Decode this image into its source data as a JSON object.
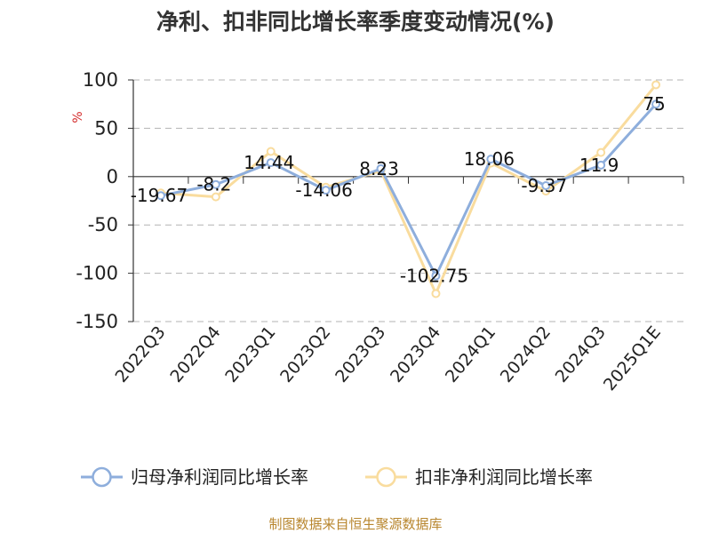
{
  "title": "净利、扣非同比增长率季度变动情况(%)",
  "source": "制图数据来自恒生聚源数据库",
  "colors": {
    "series1": "#8eaedc",
    "series2": "#f9dc9e",
    "ylabel": "#d42b2b",
    "source": "#b8862e",
    "grid": "#b3b3b3"
  },
  "chart_data": {
    "type": "line",
    "categories": [
      "2022Q3",
      "2022Q4",
      "2023Q1",
      "2023Q2",
      "2023Q3",
      "2023Q4",
      "2024Q1",
      "2024Q2",
      "2024Q3",
      "2025Q1E"
    ],
    "ylabel": "%",
    "ylim": [
      -150,
      100
    ],
    "yticks": [
      100,
      50,
      0,
      -50,
      -100,
      -150
    ],
    "grid": true,
    "legend_position": "bottom",
    "series": [
      {
        "name": "归母净利润同比增长率",
        "values": [
          -19.67,
          -8.2,
          14.44,
          -14.06,
          8.23,
          -102.75,
          18.06,
          -9.37,
          11.9,
          75
        ],
        "labels": [
          "-19.67",
          "-8.2",
          "14.44",
          "-14.06",
          "8.23",
          "-102.75",
          "18.06",
          "-9.37",
          "11.9",
          "75"
        ]
      },
      {
        "name": "扣非净利润同比增长率",
        "values": [
          -17,
          -21,
          26,
          -11,
          6,
          -121,
          14,
          -15,
          25,
          95
        ]
      }
    ]
  }
}
